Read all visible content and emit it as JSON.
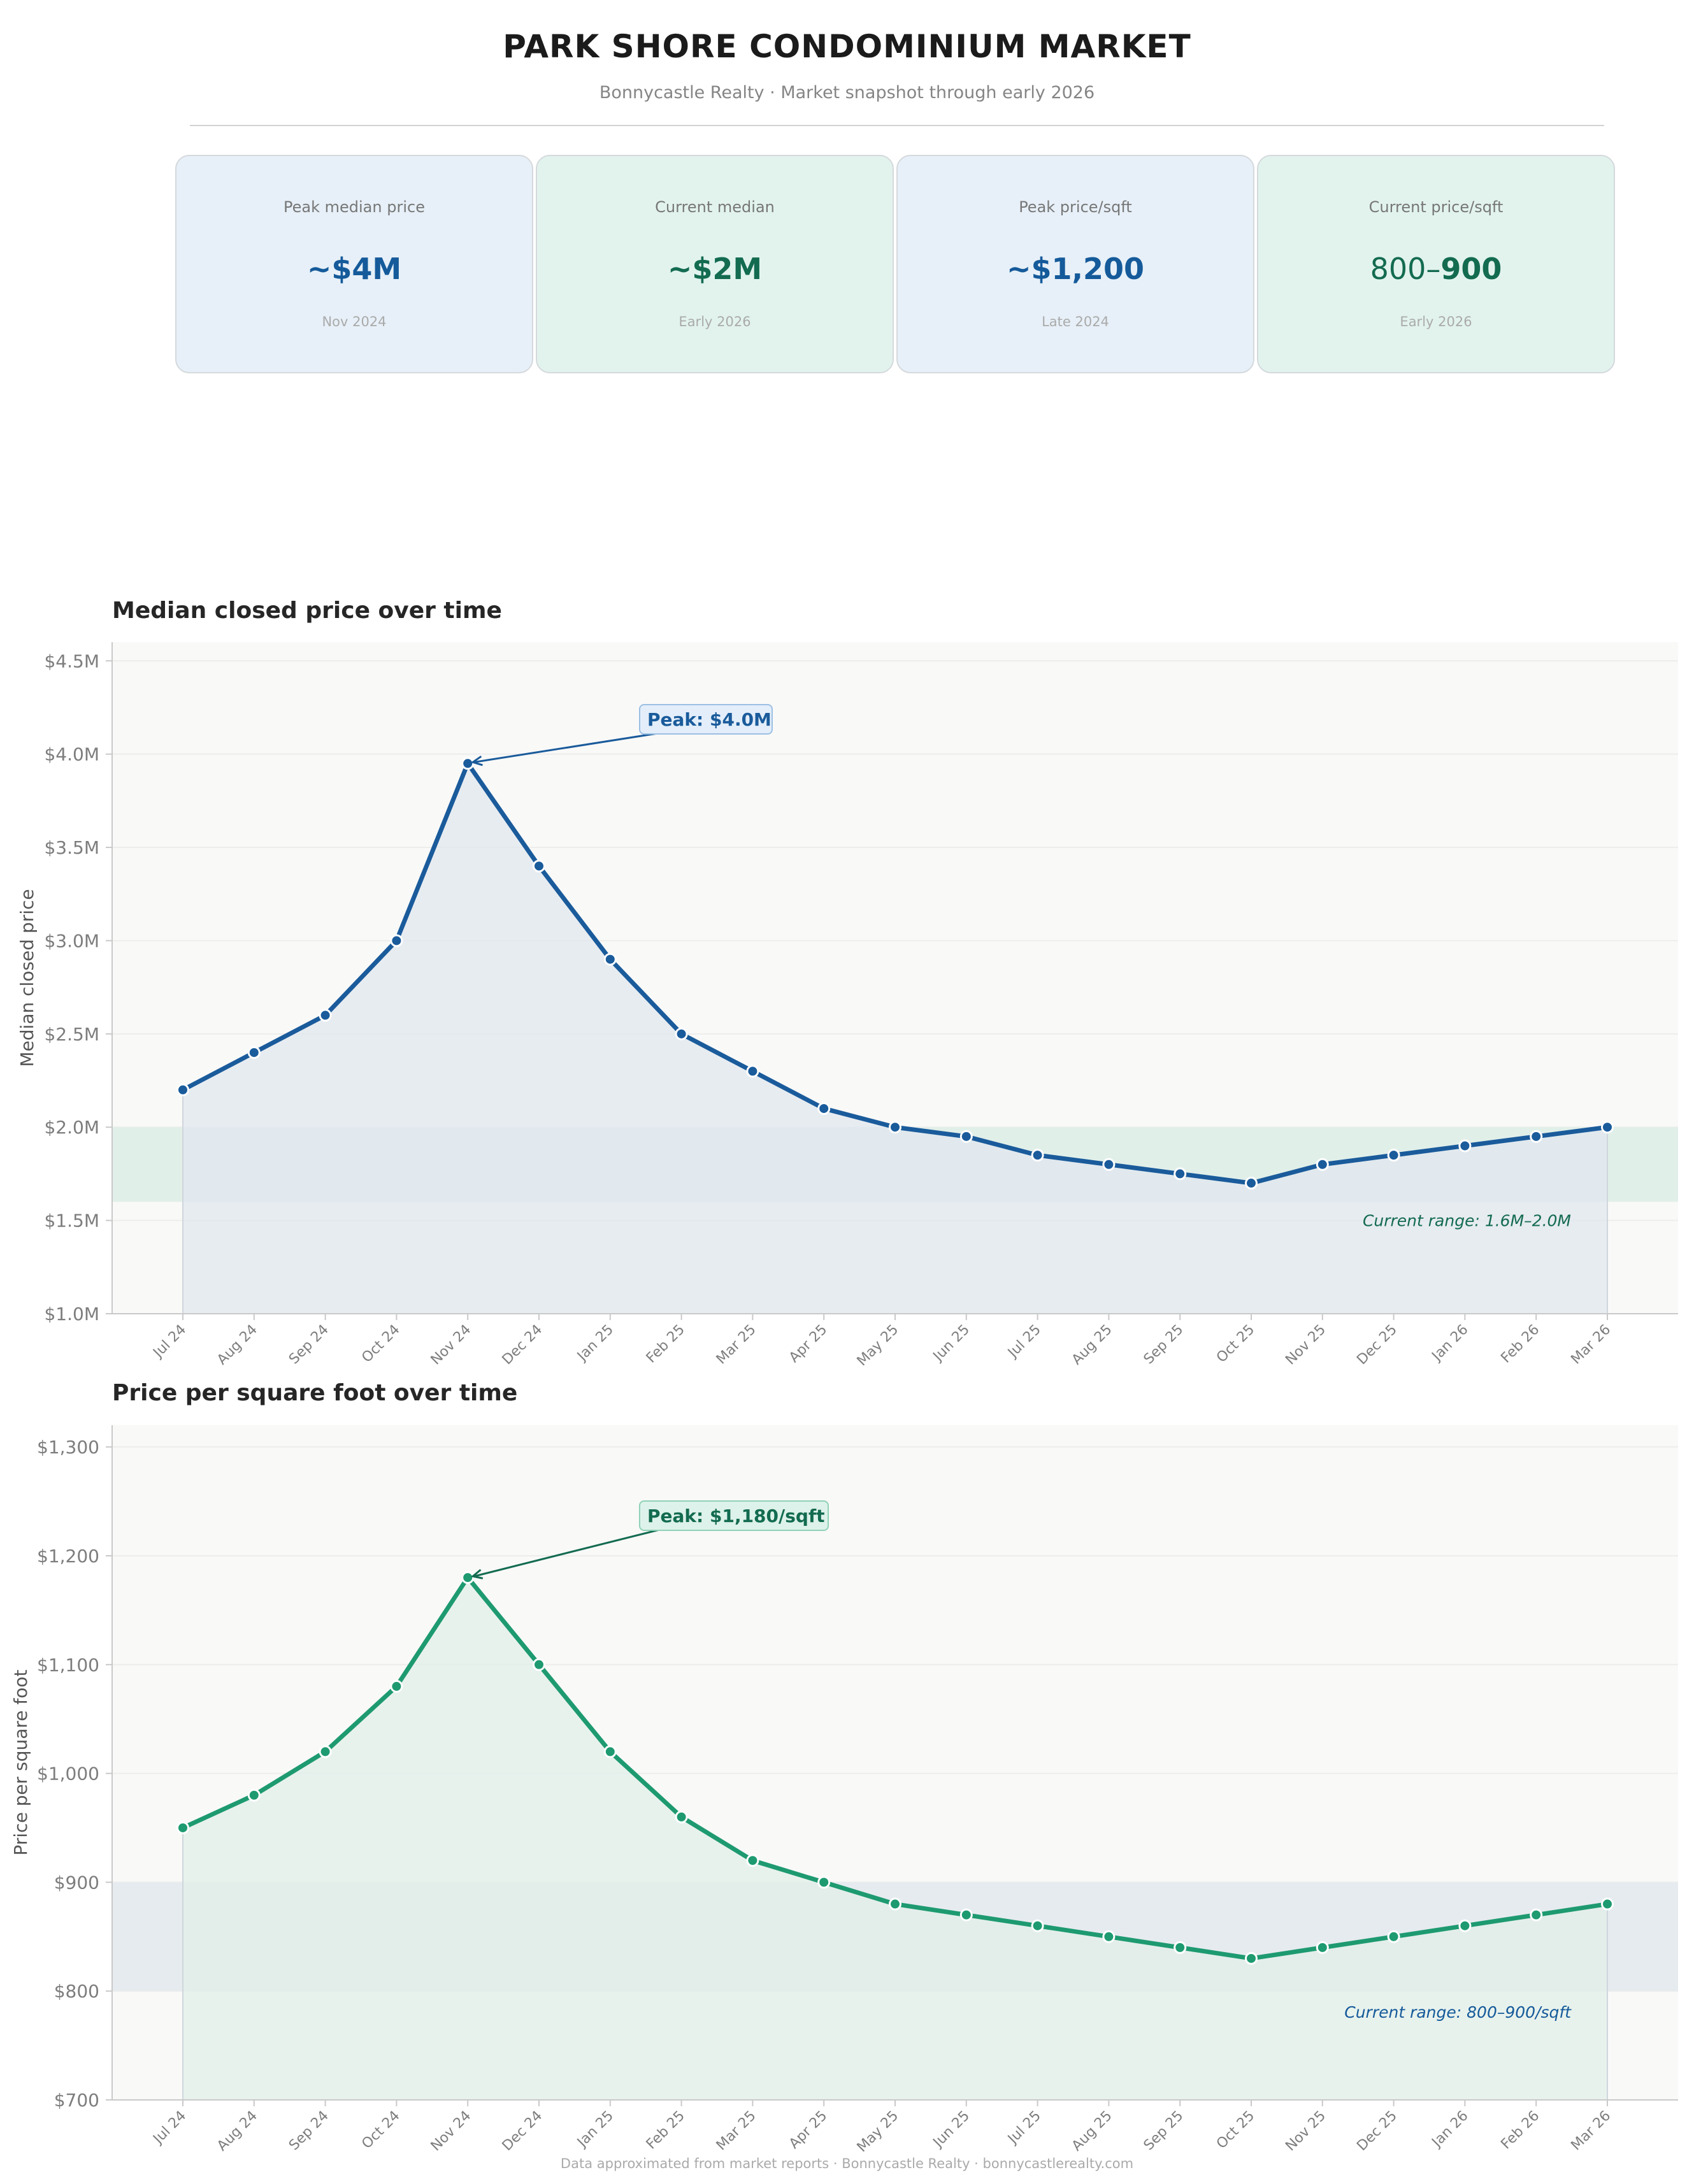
{
  "header": {
    "title": "PARK SHORE CONDOMINIUM MARKET",
    "subtitle": "Bonnycastle Realty  ·  Market snapshot through early 2026"
  },
  "cards": [
    {
      "label": "Peak median price",
      "value": "~$4M",
      "sub": "Nov 2024",
      "tone": "blue"
    },
    {
      "label": "Current median",
      "value": "~$2M",
      "sub": "Early 2026",
      "tone": "green"
    },
    {
      "label": "Peak price/sqft",
      "value": "~$1,200",
      "sub": "Late 2024",
      "tone": "blue"
    },
    {
      "label": "Current price/sqft",
      "value_light": "800–",
      "value_bold": "900",
      "sub": "Early 2026",
      "tone": "green"
    }
  ],
  "chart_data": [
    {
      "type": "line",
      "title": "Median closed price over time",
      "xlabel": "",
      "ylabel": "Median closed price",
      "x": [
        "Jul 24",
        "Aug 24",
        "Sep 24",
        "Oct 24",
        "Nov 24",
        "Dec 24",
        "Jan 25",
        "Feb 25",
        "Mar 25",
        "Apr 25",
        "May 25",
        "Jun 25",
        "Jul 25",
        "Aug 25",
        "Sep 25",
        "Oct 25",
        "Nov 25",
        "Dec 25",
        "Jan 26",
        "Feb 26",
        "Mar 26"
      ],
      "series": [
        {
          "values": [
            2.2,
            2.4,
            2.6,
            3.0,
            3.95,
            3.4,
            2.9,
            2.5,
            2.3,
            2.1,
            2.0,
            1.95,
            1.85,
            1.8,
            1.75,
            1.7,
            1.8,
            1.85,
            1.9,
            1.95,
            2.0
          ]
        }
      ],
      "ylim": [
        1.0,
        4.6
      ],
      "yticks": [
        1.0,
        1.5,
        2.0,
        2.5,
        3.0,
        3.5,
        4.0,
        4.5
      ],
      "ytick_labels": [
        "$1.0M",
        "$1.5M",
        "$2.0M",
        "$2.5M",
        "$3.0M",
        "$3.5M",
        "$4.0M",
        "$4.5M"
      ],
      "band": {
        "from": 1.6,
        "to": 2.0,
        "label": "Current range: 1.6M–2.0M"
      },
      "peak": {
        "index": 4,
        "label": "Peak: $4.0M"
      },
      "grid": true,
      "colors": {
        "line": "#1a5b9b",
        "fill": "#e0e7ef",
        "band": "#e1efe9",
        "band_text": "#136b50",
        "peak_bg": "#e3eefa",
        "peak_border": "#9cbfe3"
      }
    },
    {
      "type": "line",
      "title": "Price per square foot over time",
      "xlabel": "",
      "ylabel": "Price per square foot",
      "x": [
        "Jul 24",
        "Aug 24",
        "Sep 24",
        "Oct 24",
        "Nov 24",
        "Dec 24",
        "Jan 25",
        "Feb 25",
        "Mar 25",
        "Apr 25",
        "May 25",
        "Jun 25",
        "Jul 25",
        "Aug 25",
        "Sep 25",
        "Oct 25",
        "Nov 25",
        "Dec 25",
        "Jan 26",
        "Feb 26",
        "Mar 26"
      ],
      "series": [
        {
          "values": [
            950,
            980,
            1020,
            1080,
            1180,
            1100,
            1020,
            960,
            920,
            900,
            880,
            870,
            860,
            850,
            840,
            830,
            840,
            850,
            860,
            870,
            880
          ]
        }
      ],
      "ylim": [
        700,
        1320
      ],
      "yticks": [
        700,
        800,
        900,
        1000,
        1100,
        1200,
        1300
      ],
      "ytick_labels": [
        "$700",
        "$800",
        "$900",
        "$1,000",
        "$1,100",
        "$1,200",
        "$1,300"
      ],
      "band": {
        "from": 800,
        "to": 900,
        "label": "Current range: 800–900/sqft"
      },
      "peak": {
        "index": 4,
        "label": "Peak: $1,180/sqft"
      },
      "grid": true,
      "colors": {
        "line": "#1e9a70",
        "fill": "#e1efe9",
        "band": "#e6ebef",
        "band_text": "#155a9a",
        "peak_bg": "#ddf2ea",
        "peak_border": "#8fd2b7"
      }
    }
  ],
  "footer": "Data approximated from market reports  ·  Bonnycastle Realty  ·  bonnycastlerealty.com"
}
